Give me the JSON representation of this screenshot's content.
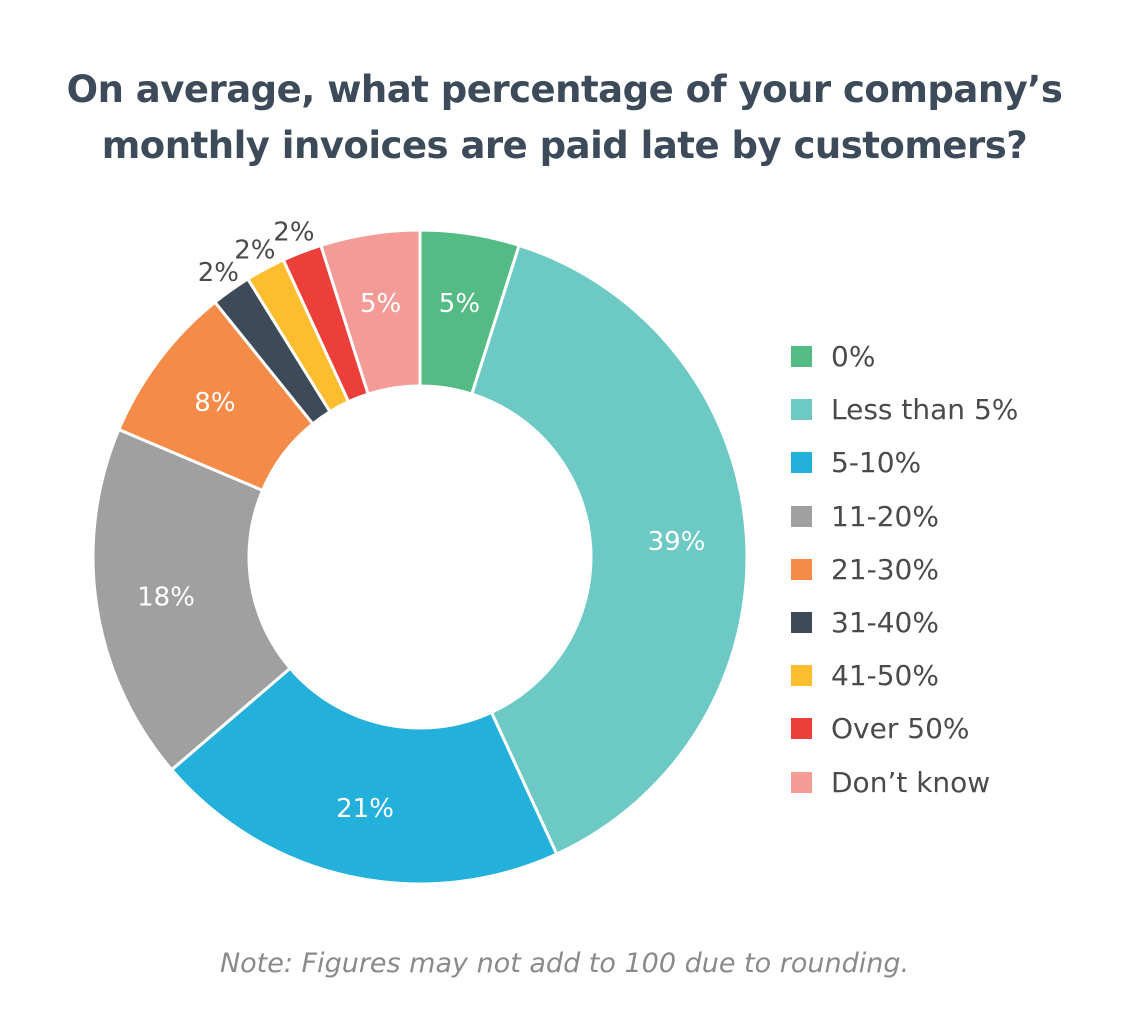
{
  "title": {
    "line1": "On average, what percentage of your company’s",
    "line2": "monthly invoices are paid late by customers?"
  },
  "note": "Note: Figures may not add to 100 due to rounding.",
  "chart_data": {
    "type": "pie",
    "subtype": "donut",
    "title": "On average, what percentage of your company’s monthly invoices are paid late by customers?",
    "categories": [
      "0%",
      "Less than 5%",
      "5-10%",
      "11-20%",
      "21-30%",
      "31-40%",
      "41-50%",
      "Over 50%",
      "Don’t know"
    ],
    "values": [
      5,
      39,
      21,
      18,
      8,
      2,
      2,
      2,
      5
    ],
    "labels": [
      "5%",
      "39%",
      "21%",
      "18%",
      "8%",
      "2%",
      "2%",
      "2%",
      "5%"
    ],
    "colors": [
      "#55bb84",
      "#6dc9c3",
      "#23b0da",
      "#a0a0a0",
      "#f58b48",
      "#3d4a59",
      "#fcbd2e",
      "#ec3f3a",
      "#f49b97"
    ],
    "legend_position": "right",
    "annotation": "Note: Figures may not add to 100 due to rounding."
  }
}
